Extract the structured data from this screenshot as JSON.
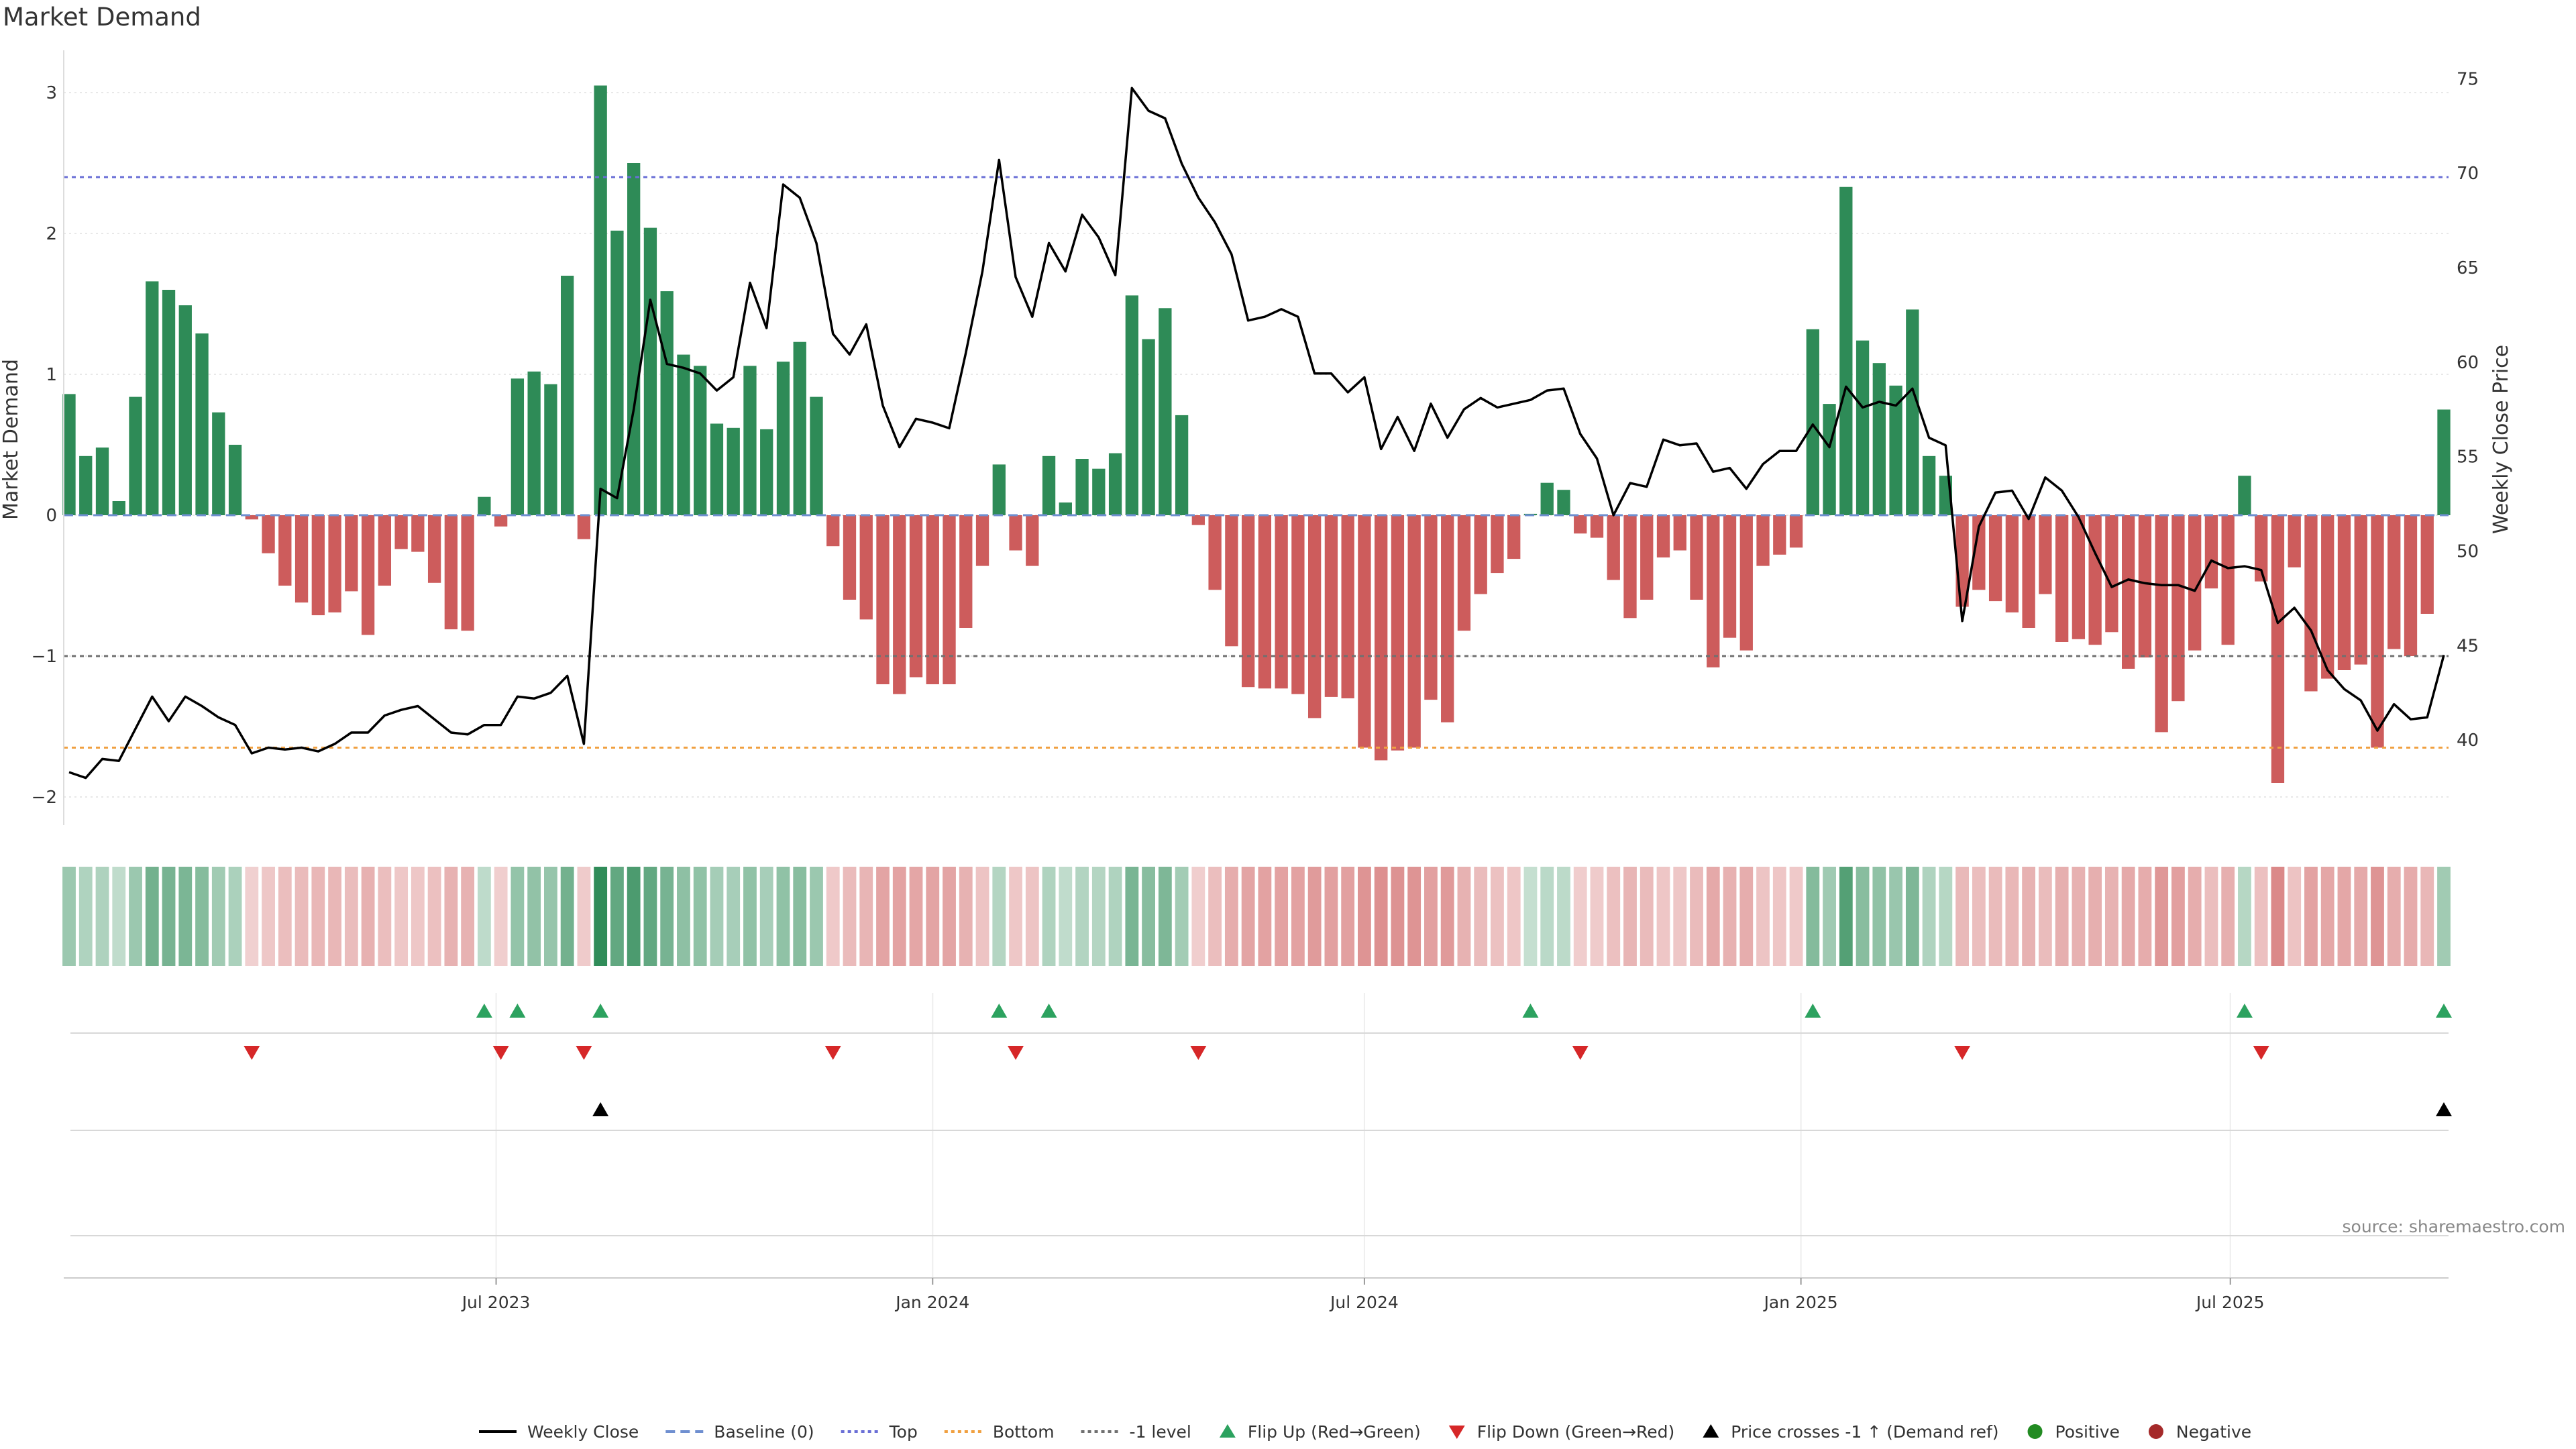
{
  "chart_data": {
    "type": "bar+line",
    "title": "Market Demand",
    "ylabel_left": "Market Demand",
    "ylabel_right": "Weekly Close Price",
    "source": "source: sharemaestro.com",
    "x_start": "2023-01-02",
    "x_step_days": 7,
    "left_axis": {
      "ylim": [
        -2.2,
        3.3
      ],
      "ticks": [
        -2,
        -1,
        0,
        1,
        2,
        3
      ],
      "tick_labels": [
        "−2",
        "−1",
        "0",
        "1",
        "2",
        "3"
      ]
    },
    "right_axis": {
      "ylim": [
        35.5,
        76.5
      ],
      "ticks": [
        40,
        45,
        50,
        55,
        60,
        65,
        70,
        75
      ],
      "tick_labels": [
        "40",
        "45",
        "50",
        "55",
        "60",
        "65",
        "70",
        "75"
      ]
    },
    "x_ticks": [
      {
        "date": "2023-07-01",
        "label": "Jul 2023"
      },
      {
        "date": "2024-01-01",
        "label": "Jan 2024"
      },
      {
        "date": "2024-07-01",
        "label": "Jul 2024"
      },
      {
        "date": "2025-01-01",
        "label": "Jan 2025"
      },
      {
        "date": "2025-07-01",
        "label": "Jul 2025"
      }
    ],
    "reference_lines": {
      "top": 2.4,
      "bottom": -1.65,
      "minus_one": -1.0
    },
    "demand": [
      0.86,
      0.42,
      0.48,
      0.1,
      0.84,
      1.66,
      1.6,
      1.49,
      1.29,
      0.73,
      0.5,
      -0.03,
      -0.27,
      -0.5,
      -0.62,
      -0.71,
      -0.69,
      -0.54,
      -0.85,
      -0.5,
      -0.24,
      -0.26,
      -0.48,
      -0.81,
      -0.82,
      0.13,
      -0.08,
      0.97,
      1.02,
      0.93,
      1.7,
      -0.17,
      3.05,
      2.02,
      2.5,
      2.04,
      1.59,
      1.14,
      1.06,
      0.65,
      0.62,
      1.06,
      0.61,
      1.09,
      1.23,
      0.84,
      -0.22,
      -0.6,
      -0.74,
      -1.2,
      -1.27,
      -1.15,
      -1.2,
      -1.2,
      -0.8,
      -0.36,
      0.36,
      -0.25,
      -0.36,
      0.42,
      0.09,
      0.4,
      0.33,
      0.44,
      1.56,
      1.25,
      1.47,
      0.71,
      -0.07,
      -0.53,
      -0.93,
      -1.22,
      -1.23,
      -1.23,
      -1.27,
      -1.44,
      -1.29,
      -1.3,
      -1.65,
      -1.74,
      -1.67,
      -1.65,
      -1.31,
      -1.47,
      -0.82,
      -0.56,
      -0.41,
      -0.31,
      0.01,
      0.23,
      0.18,
      -0.13,
      -0.16,
      -0.46,
      -0.73,
      -0.6,
      -0.3,
      -0.25,
      -0.6,
      -1.08,
      -0.87,
      -0.96,
      -0.36,
      -0.28,
      -0.23,
      1.32,
      0.79,
      2.33,
      1.24,
      1.08,
      0.92,
      1.46,
      0.42,
      0.28,
      -0.65,
      -0.53,
      -0.61,
      -0.69,
      -0.8,
      -0.56,
      -0.9,
      -0.88,
      -0.92,
      -0.83,
      -1.09,
      -1.01,
      -1.54,
      -1.32,
      -0.96,
      -0.52,
      -0.92,
      0.28,
      -0.47,
      -1.9,
      -0.37,
      -1.25,
      -1.16,
      -1.1,
      -1.06,
      -1.65,
      -0.95,
      -1.0,
      -0.7,
      0.75
    ],
    "price": [
      38.3,
      38.0,
      39.0,
      38.9,
      40.6,
      42.3,
      41.0,
      42.3,
      41.8,
      41.2,
      40.8,
      39.3,
      39.6,
      39.5,
      39.6,
      39.4,
      39.8,
      40.4,
      40.4,
      41.3,
      41.6,
      41.8,
      41.1,
      40.4,
      40.3,
      40.8,
      40.8,
      42.3,
      42.2,
      42.5,
      43.4,
      39.8,
      53.3,
      52.8,
      57.5,
      63.3,
      59.9,
      59.7,
      59.4,
      58.5,
      59.2,
      64.2,
      61.8,
      69.4,
      68.7,
      66.3,
      61.5,
      60.4,
      62.0,
      57.7,
      55.5,
      57.0,
      56.8,
      56.5,
      60.5,
      64.8,
      70.7,
      64.5,
      62.4,
      66.3,
      64.8,
      67.8,
      66.6,
      64.6,
      74.5,
      73.3,
      72.9,
      70.5,
      68.7,
      67.4,
      65.7,
      62.2,
      62.4,
      62.8,
      62.4,
      59.4,
      59.4,
      58.4,
      59.2,
      55.4,
      57.1,
      55.3,
      57.8,
      56.0,
      57.5,
      58.1,
      57.6,
      57.8,
      58.0,
      58.5,
      58.6,
      56.2,
      54.9,
      51.9,
      53.6,
      53.4,
      55.9,
      55.6,
      55.7,
      54.2,
      54.4,
      53.3,
      54.6,
      55.3,
      55.3,
      56.7,
      55.5,
      58.7,
      57.6,
      57.9,
      57.7,
      58.6,
      56.0,
      55.6,
      46.3,
      51.3,
      53.1,
      53.2,
      51.7,
      53.9,
      53.2,
      51.8,
      49.9,
      48.1,
      48.5,
      48.3,
      48.2,
      48.2,
      47.9,
      49.5,
      49.1,
      49.2,
      49.0,
      46.2,
      47.0,
      45.8,
      43.7,
      42.7,
      42.1,
      40.5,
      41.9,
      41.1,
      41.2,
      44.5
    ],
    "flip_up": [
      25,
      27,
      32,
      56,
      59,
      88,
      105,
      131,
      143
    ],
    "flip_down": [
      11,
      26,
      31,
      46,
      57,
      68,
      91,
      114,
      132
    ],
    "price_cross": [
      32,
      143
    ],
    "colors": {
      "positive": "#2e8b57",
      "negative": "#cd5c5c",
      "price": "#000000",
      "top": "#6a6fd6",
      "bottom": "#f0a040",
      "minus_one": "#707070",
      "flip_up": "#2ca25f",
      "flip_down": "#d62728",
      "positive_dot": "#228b22",
      "negative_dot": "#a52a2a"
    },
    "legend": [
      {
        "key": "line_solid",
        "label": "Weekly Close"
      },
      {
        "key": "line_dashed_blue",
        "label": "Baseline (0)"
      },
      {
        "key": "line_dotted_purple",
        "label": "Top"
      },
      {
        "key": "line_dotted_orange",
        "label": "Bottom"
      },
      {
        "key": "line_dotted_gray",
        "label": "-1 level"
      },
      {
        "key": "tri_up_green",
        "label": "Flip Up (Red→Green)"
      },
      {
        "key": "tri_down_red",
        "label": "Flip Down (Green→Red)"
      },
      {
        "key": "tri_up_black",
        "label": "Price crosses -1 ↑ (Demand ref)"
      },
      {
        "key": "dot_green",
        "label": "Positive"
      },
      {
        "key": "dot_red",
        "label": "Negative"
      }
    ],
    "legend_placement": "bottom-center"
  }
}
